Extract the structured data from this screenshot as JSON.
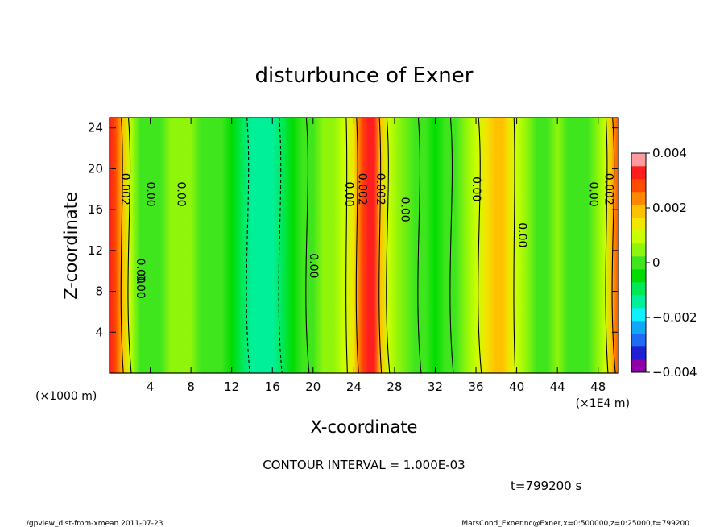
{
  "chart_data": {
    "type": "heatmap",
    "title": "disturbunce of Exner",
    "xlabel": "X-coordinate",
    "ylabel": "Z-coordinate",
    "x_unit_label": "(×1E4 m)",
    "y_unit_label": "(×1000 m)",
    "xlim": [
      0,
      50
    ],
    "ylim": [
      0,
      25
    ],
    "x_ticks": [
      4,
      8,
      12,
      16,
      20,
      24,
      28,
      32,
      36,
      40,
      44,
      48
    ],
    "y_ticks": [
      4,
      8,
      12,
      16,
      20,
      24
    ],
    "colorbar": {
      "min": -0.004,
      "max": 0.004,
      "tick_labels": [
        "0.004",
        "0.002",
        "0",
        "−0.002",
        "−0.004"
      ],
      "tick_values": [
        0.004,
        0.002,
        0,
        -0.002,
        -0.004
      ],
      "colors": [
        "#8f00a8",
        "#1f1fd4",
        "#1f6cf2",
        "#0fa8f8",
        "#0ff0ff",
        "#00f09a",
        "#00e855",
        "#00dc00",
        "#3fe61e",
        "#8ff50a",
        "#c8ff00",
        "#f0e600",
        "#ffc000",
        "#ff8800",
        "#ff4b00",
        "#ff1e1e",
        "#ff9aa0"
      ]
    },
    "x_columns": [
      0,
      0.6,
      1.3,
      2.0,
      3.0,
      4.0,
      5.0,
      6.0,
      7.0,
      8.0,
      9.0,
      10.0,
      11.0,
      12.0,
      13.0,
      14.0,
      15.0,
      16.0,
      17.0,
      18.0,
      19.0,
      20.0,
      21.0,
      22.0,
      23.0,
      24.0,
      24.8,
      25.4,
      26.0,
      26.6,
      27.4,
      28.4,
      30.0,
      31.0,
      32.0,
      33.0,
      34.0,
      35.0,
      36.0,
      37.0,
      38.0,
      38.6,
      39.2,
      40.0,
      41.0,
      42.0,
      43.0,
      44.0,
      45.0,
      46.0,
      47.0,
      48.0,
      48.7,
      49.3,
      50.0
    ],
    "column_values": [
      0.0035,
      0.0028,
      0.0018,
      0.0008,
      0.0002,
      0.0001,
      0.0002,
      0.0004,
      0.0006,
      0.0004,
      0.0002,
      0.0001,
      0.0,
      -0.0003,
      -0.0008,
      -0.0012,
      -0.0013,
      -0.0012,
      -0.0009,
      -0.0005,
      -0.0001,
      0.0002,
      0.0003,
      0.0004,
      0.0008,
      0.0016,
      0.0028,
      0.0035,
      0.0032,
      0.0018,
      0.0008,
      0.0004,
      0.0001,
      -0.0002,
      -0.0005,
      -0.0002,
      0.0002,
      0.0006,
      0.0009,
      0.0013,
      0.0017,
      0.0017,
      0.0014,
      0.0008,
      0.0004,
      0.0002,
      0.0002,
      0.0003,
      0.0002,
      0.0001,
      0.0002,
      0.0004,
      0.0009,
      0.0018,
      0.003
    ],
    "contour_labels": [
      {
        "text": "0.002",
        "x": 1.5,
        "y": 18
      },
      {
        "text": "0.00",
        "x": 4.0,
        "y": 17.5
      },
      {
        "text": "0.00",
        "x": 7.0,
        "y": 17.5
      },
      {
        "text": "0.00",
        "x": 3.0,
        "y": 10
      },
      {
        "text": "0.00",
        "x": 3.0,
        "y": 8.5
      },
      {
        "text": "0.00",
        "x": 20.0,
        "y": 10.5
      },
      {
        "text": "0.00",
        "x": 23.5,
        "y": 17.5
      },
      {
        "text": "0.002",
        "x": 24.8,
        "y": 18
      },
      {
        "text": "0.002",
        "x": 26.6,
        "y": 18
      },
      {
        "text": "0.00",
        "x": 29.0,
        "y": 16
      },
      {
        "text": "0.00",
        "x": 36.0,
        "y": 18
      },
      {
        "text": "0.00",
        "x": 40.5,
        "y": 13.5
      },
      {
        "text": "0.00",
        "x": 47.5,
        "y": 17.5
      },
      {
        "text": "0.002",
        "x": 49.0,
        "y": 18
      }
    ]
  },
  "annotations": {
    "contour_interval": "CONTOUR INTERVAL = 1.000E-03",
    "time": "t=799200 s",
    "footer_left": "./gpview_dist-from-xmean 2011-07-23",
    "footer_right": "MarsCond_Exner.nc@Exner,x=0:500000,z=0:25000,t=799200"
  }
}
